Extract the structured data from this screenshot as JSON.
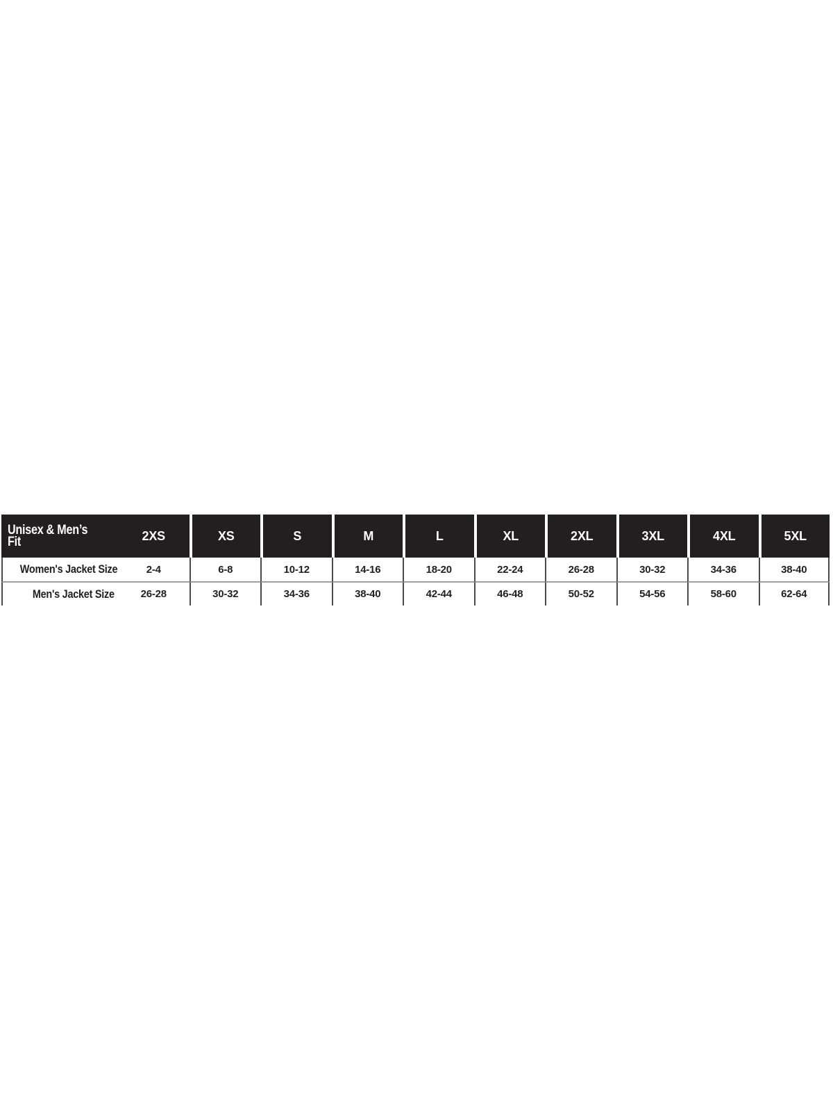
{
  "chart_data": {
    "type": "table",
    "corner_label": "Unisex & Men’s\nFit",
    "columns": [
      "2XS",
      "XS",
      "S",
      "M",
      "L",
      "XL",
      "2XL",
      "3XL",
      "4XL",
      "5XL"
    ],
    "rows": [
      {
        "label": "Women's Jacket Size",
        "values": [
          "2-4",
          "6-8",
          "10-12",
          "14-16",
          "18-20",
          "22-24",
          "26-28",
          "30-32",
          "34-36",
          "38-40"
        ]
      },
      {
        "label": "Men's Jacket Size",
        "values": [
          "26-28",
          "30-32",
          "34-36",
          "38-40",
          "42-44",
          "46-48",
          "50-52",
          "54-56",
          "58-60",
          "62-64"
        ]
      }
    ],
    "layout": {
      "header_bg": "#231f20",
      "header_text_color": "#ffffff",
      "body_text_color": "#231f20",
      "vertical_divider_color": "#4a4b4d",
      "row_divider_color": "#9c9ea1",
      "page_background": "#ffffff"
    }
  }
}
